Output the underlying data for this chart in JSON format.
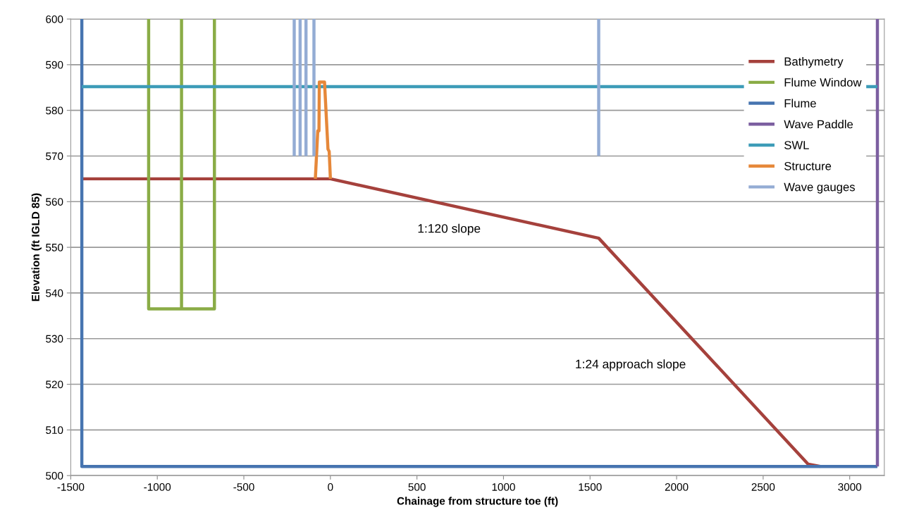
{
  "chart_data": {
    "type": "line",
    "xlabel": "Chainage from structure toe (ft)",
    "ylabel": "Elevation (ft IGLD 85)",
    "xlim": [
      -1500,
      3200
    ],
    "xticks": [
      -1500,
      -1000,
      -500,
      0,
      500,
      1000,
      1500,
      2000,
      2500,
      3000
    ],
    "ylim": [
      500,
      600
    ],
    "yticks": [
      500,
      510,
      520,
      530,
      540,
      550,
      560,
      570,
      580,
      590,
      600
    ],
    "grid": "y",
    "legend": "top right",
    "marker": "none",
    "line_style": "solid",
    "series": [
      {
        "name": "Bathymetry",
        "color": "#a5413c",
        "x": [
          -1436,
          0,
          1550,
          2760,
          2830
        ],
        "values": [
          565,
          565,
          552,
          502.5,
          502
        ]
      },
      {
        "name": "Flume Window",
        "color": "#8aac46",
        "x": [
          -1050,
          -1050,
          -670,
          -670,
          null,
          -860,
          -860
        ],
        "values": [
          600,
          536.5,
          536.5,
          600,
          null,
          600,
          536.5
        ]
      },
      {
        "name": "Flume",
        "color": "#4674b0",
        "x": [
          -1436,
          -1436,
          3160
        ],
        "values": [
          600,
          502,
          502
        ]
      },
      {
        "name": "Wave Paddle",
        "color": "#7c5fa0",
        "x": [
          3160,
          3160
        ],
        "values": [
          502,
          600
        ]
      },
      {
        "name": "SWL",
        "color": "#3d9cb8",
        "x": [
          -1436,
          3160
        ],
        "values": [
          585.2,
          585.2
        ]
      },
      {
        "name": "Structure",
        "color": "#e6883a",
        "x": [
          -87,
          -73,
          -66,
          -64,
          -34,
          -14,
          -7,
          0
        ],
        "values": [
          565,
          575.5,
          575.5,
          586.2,
          586.2,
          571.5,
          571,
          565
        ]
      },
      {
        "name": "Wave gauges",
        "color": "#94acd4",
        "x": [
          -209,
          -209,
          null,
          -175,
          -175,
          null,
          -141,
          -141,
          null,
          -95,
          -95,
          null,
          1550,
          1550
        ],
        "values": [
          570,
          600,
          null,
          570,
          600,
          null,
          570,
          600,
          null,
          570,
          600,
          null,
          570,
          600
        ]
      }
    ],
    "annotations": [
      "1:120 slope",
      "1:24 approach slope"
    ]
  }
}
